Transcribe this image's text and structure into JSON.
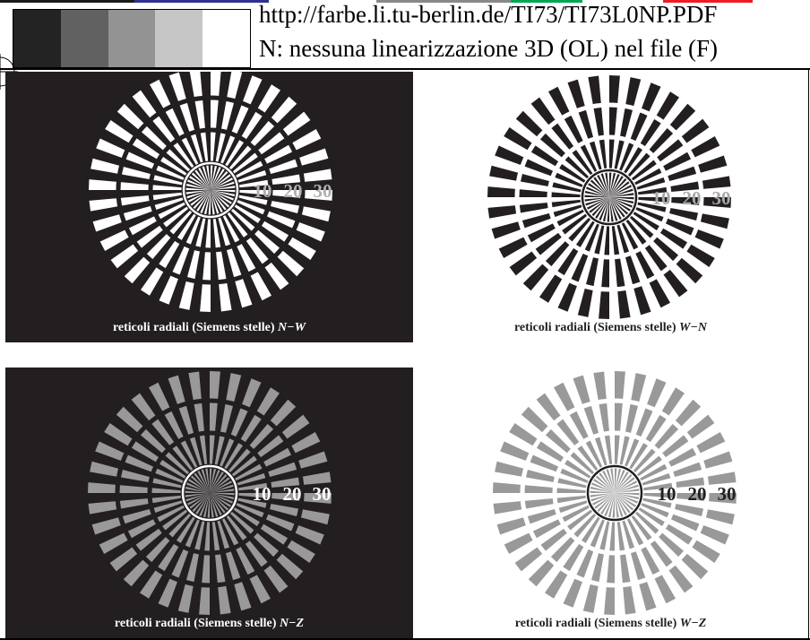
{
  "header": {
    "url": "http://farbe.li.tu-berlin.de/TI73/TI73L0NP.PDF",
    "subtitle": "N: nessuna linearizzazione 3D (OL) nel file (F)",
    "gray_steps": [
      "#232323",
      "#616161",
      "#939393",
      "#c6c6c6",
      "#ffffff"
    ]
  },
  "panels": [
    {
      "id": "nw",
      "caption_text": "reticoli radiali (Siemens stelle) ",
      "caption_code": "N−W",
      "background": "#231f20",
      "spoke_color": "#ffffff",
      "ring_color": "#ffffff",
      "label_color": "#b0b0b0",
      "caption_color": "#ffffff",
      "labels": [
        "10",
        "20",
        "30"
      ]
    },
    {
      "id": "wn",
      "caption_text": "reticoli radiali (Siemens stelle) ",
      "caption_code": "W−N",
      "background": "#ffffff",
      "spoke_color": "#231f20",
      "ring_color": "#231f20",
      "label_color": "#a8a8a8",
      "caption_color": "#231f20",
      "labels": [
        "10",
        "20",
        "30"
      ]
    },
    {
      "id": "nz",
      "caption_text": "reticoli radiali (Siemens stelle) ",
      "caption_code": "N−Z",
      "background": "#231f20",
      "spoke_color": "#999999",
      "ring_color": "#ffffff",
      "label_color": "#ffffff",
      "caption_color": "#ffffff",
      "labels": [
        "10",
        "20",
        "30"
      ]
    },
    {
      "id": "wz",
      "caption_text": "reticoli radiali (Siemens stelle) ",
      "caption_code": "W−Z",
      "background": "#ffffff",
      "spoke_color": "#999999",
      "ring_color": "#231f20",
      "label_color": "#231f20",
      "caption_color": "#231f20",
      "labels": [
        "10",
        "20",
        "30"
      ]
    }
  ]
}
